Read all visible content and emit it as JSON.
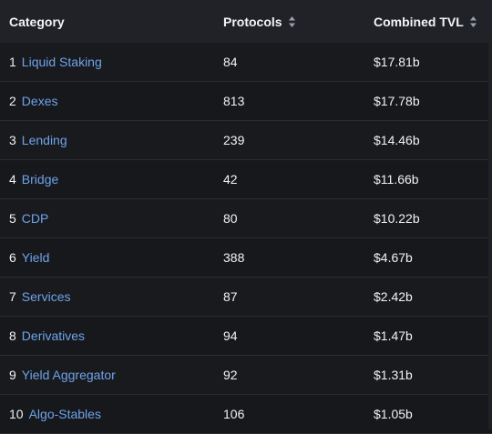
{
  "table": {
    "headers": {
      "category": "Category",
      "protocols": "Protocols",
      "tvl": "Combined TVL"
    },
    "rows": [
      {
        "rank": "1",
        "category": "Liquid Staking",
        "protocols": "84",
        "tvl": "$17.81b"
      },
      {
        "rank": "2",
        "category": "Dexes",
        "protocols": "813",
        "tvl": "$17.78b"
      },
      {
        "rank": "3",
        "category": "Lending",
        "protocols": "239",
        "tvl": "$14.46b"
      },
      {
        "rank": "4",
        "category": "Bridge",
        "protocols": "42",
        "tvl": "$11.66b"
      },
      {
        "rank": "5",
        "category": "CDP",
        "protocols": "80",
        "tvl": "$10.22b"
      },
      {
        "rank": "6",
        "category": "Yield",
        "protocols": "388",
        "tvl": "$4.67b"
      },
      {
        "rank": "7",
        "category": "Services",
        "protocols": "87",
        "tvl": "$2.42b"
      },
      {
        "rank": "8",
        "category": "Derivatives",
        "protocols": "94",
        "tvl": "$1.47b"
      },
      {
        "rank": "9",
        "category": "Yield Aggregator",
        "protocols": "92",
        "tvl": "$1.31b"
      },
      {
        "rank": "10",
        "category": "Algo-Stables",
        "protocols": "106",
        "tvl": "$1.05b"
      }
    ]
  },
  "colors": {
    "background": "#17181c",
    "header_background": "#202227",
    "link": "#6ea3ea",
    "text": "#f1f2f4"
  },
  "icons": {
    "sort": "sort-icon"
  }
}
